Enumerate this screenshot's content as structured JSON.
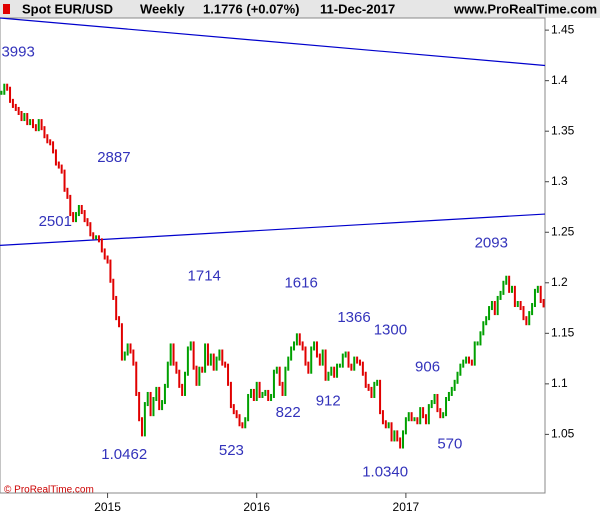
{
  "chart_data": {
    "type": "price-bars",
    "title": "Spot EUR/USD",
    "period": "Weekly",
    "last": "1.1776 (+0.07%)",
    "date": "11-Dec-2017",
    "source": "www.ProRealTime.com",
    "footer": "© ProRealTime.com",
    "up_color": "#00a000",
    "down_color": "#e00000",
    "categories": [
      null,
      null,
      null,
      null,
      null,
      null,
      null,
      null,
      null,
      null,
      null,
      null,
      null,
      null,
      null,
      null,
      null,
      null,
      null,
      null,
      null,
      null,
      null,
      null,
      null,
      null,
      null,
      null,
      null,
      null,
      null,
      null,
      null,
      null,
      null,
      null,
      null,
      "2015",
      null,
      null,
      null,
      null,
      null,
      null,
      null,
      null,
      null,
      null,
      null,
      null,
      null,
      null,
      null,
      null,
      null,
      null,
      null,
      null,
      null,
      null,
      null,
      null,
      null,
      null,
      null,
      null,
      null,
      null,
      null,
      null,
      null,
      null,
      null,
      null,
      null,
      null,
      null,
      null,
      null,
      null,
      null,
      null,
      null,
      null,
      null,
      null,
      null,
      null,
      null,
      "2016",
      null,
      null,
      null,
      null,
      null,
      null,
      null,
      null,
      null,
      null,
      null,
      null,
      null,
      null,
      null,
      null,
      null,
      null,
      null,
      null,
      null,
      null,
      null,
      null,
      null,
      null,
      null,
      null,
      null,
      null,
      null,
      null,
      null,
      null,
      null,
      null,
      null,
      null,
      null,
      null,
      null,
      null,
      null,
      null,
      null,
      null,
      null,
      null,
      null,
      null,
      null,
      "2017",
      null,
      null,
      null,
      null,
      null,
      null,
      null,
      null,
      null,
      null,
      null,
      null,
      null,
      null,
      null,
      null,
      null,
      null,
      null,
      null,
      null,
      null,
      null,
      null,
      null,
      null,
      null,
      null,
      null,
      null,
      null,
      null,
      null,
      null,
      null,
      null,
      null,
      null,
      null,
      null,
      null,
      null,
      null,
      null,
      null,
      null,
      null,
      null
    ],
    "values": [
      1.388,
      1.395,
      1.392,
      1.38,
      1.375,
      1.372,
      1.368,
      1.362,
      1.366,
      1.358,
      1.36,
      1.355,
      1.352,
      1.36,
      1.353,
      1.345,
      1.34,
      1.338,
      1.33,
      1.318,
      1.315,
      1.31,
      1.292,
      1.285,
      1.268,
      1.262,
      1.268,
      1.275,
      1.27,
      1.262,
      1.258,
      1.248,
      1.245,
      1.245,
      1.242,
      1.232,
      1.225,
      1.221,
      1.202,
      1.185,
      1.165,
      1.158,
      1.125,
      1.13,
      1.138,
      1.132,
      1.12,
      1.09,
      1.065,
      1.05,
      1.08,
      1.09,
      1.07,
      1.085,
      1.095,
      1.076,
      1.082,
      1.098,
      1.12,
      1.138,
      1.12,
      1.112,
      1.098,
      1.09,
      1.11,
      1.135,
      1.14,
      1.116,
      1.1,
      1.115,
      1.113,
      1.138,
      1.12,
      1.128,
      1.115,
      1.125,
      1.132,
      1.12,
      1.118,
      1.1,
      1.078,
      1.072,
      1.068,
      1.06,
      1.058,
      1.065,
      1.088,
      1.093,
      1.085,
      1.1,
      1.088,
      1.09,
      1.092,
      1.085,
      1.088,
      1.112,
      1.115,
      1.1,
      1.09,
      1.115,
      1.125,
      1.135,
      1.14,
      1.148,
      1.14,
      1.135,
      1.12,
      1.112,
      1.135,
      1.14,
      1.128,
      1.12,
      1.132,
      1.105,
      1.11,
      1.115,
      1.108,
      1.118,
      1.118,
      1.128,
      1.13,
      1.118,
      1.115,
      1.125,
      1.122,
      1.12,
      1.11,
      1.098,
      1.095,
      1.088,
      1.1,
      1.102,
      1.072,
      1.062,
      1.058,
      1.06,
      1.045,
      1.052,
      1.045,
      1.038,
      1.052,
      1.065,
      1.07,
      1.065,
      1.065,
      1.062,
      1.075,
      1.068,
      1.062,
      1.078,
      1.082,
      1.088,
      1.074,
      1.068,
      1.07,
      1.085,
      1.09,
      1.095,
      1.102,
      1.11,
      1.118,
      1.122,
      1.125,
      1.122,
      1.12,
      1.14,
      1.14,
      1.15,
      1.16,
      1.165,
      1.175,
      1.18,
      1.17,
      1.185,
      1.19,
      1.2,
      1.205,
      1.192,
      1.195,
      1.178,
      1.18,
      1.175,
      1.165,
      1.16,
      1.17,
      1.178,
      1.192,
      1.195,
      1.182,
      1.1776
    ],
    "trendlines": [
      {
        "color": "#0000cc",
        "values": [
          1.462,
          1.415
        ]
      },
      {
        "color": "#0000cc",
        "values": [
          1.237,
          1.268
        ]
      }
    ],
    "annotations": [
      {
        "label": "3993",
        "value": 1.3993,
        "index": 2
      },
      {
        "label": "2887",
        "value": 1.2887,
        "index": 27
      },
      {
        "label": "2501",
        "value": 1.2501,
        "index": 24
      },
      {
        "label": "1.0462",
        "value": 1.0462,
        "index": 47
      },
      {
        "label": "1714",
        "value": 1.1714,
        "index": 70
      },
      {
        "label": "523",
        "value": 1.0523,
        "index": 84
      },
      {
        "label": "1616",
        "value": 1.1616,
        "index": 101
      },
      {
        "label": "822",
        "value": 1.0822,
        "index": 93
      },
      {
        "label": "912",
        "value": 1.0912,
        "index": 108
      },
      {
        "label": "1366",
        "value": 1.1366,
        "index": 117
      },
      {
        "label": "1300",
        "value": 1.13,
        "index": 122
      },
      {
        "label": "906",
        "value": 1.0906,
        "index": 136
      },
      {
        "label": "1.0340",
        "value": 1.034,
        "index": 139
      },
      {
        "label": "570",
        "value": 1.057,
        "index": 149
      },
      {
        "label": "2093",
        "value": 1.2093,
        "index": 176
      }
    ],
    "annotation_color": "#3333bb",
    "ylim": [
      0.992,
      1.462
    ],
    "yticks": [
      1.05,
      1.1,
      1.15,
      1.2,
      1.25,
      1.3,
      1.35,
      1.4,
      1.45
    ],
    "grid": false
  }
}
